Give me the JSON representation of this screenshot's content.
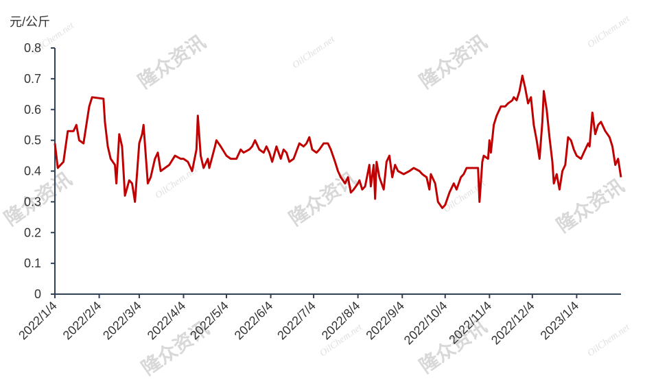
{
  "chart_data": {
    "type": "line",
    "y_label": "元/公斤",
    "watermarks": [
      "隆众资讯",
      "OilChem.net"
    ],
    "x": [
      "2022/1/4",
      "2022/1/6",
      "2022/1/10",
      "2022/1/13",
      "2022/1/17",
      "2022/1/19",
      "2022/1/21",
      "2022/1/24",
      "2022/1/28",
      "2022/1/30",
      "2022/2/7",
      "2022/2/8",
      "2022/2/10",
      "2022/2/12",
      "2022/2/15",
      "2022/2/16",
      "2022/2/18",
      "2022/2/20",
      "2022/2/22",
      "2022/2/25",
      "2022/2/27",
      "2022/3/1",
      "2022/3/4",
      "2022/3/6",
      "2022/3/7",
      "2022/3/10",
      "2022/3/12",
      "2022/3/15",
      "2022/3/17",
      "2022/3/19",
      "2022/3/22",
      "2022/3/25",
      "2022/3/29",
      "2022/4/2",
      "2022/4/4",
      "2022/4/7",
      "2022/4/10",
      "2022/4/13",
      "2022/4/14",
      "2022/4/16",
      "2022/4/18",
      "2022/4/21",
      "2022/4/22",
      "2022/4/26",
      "2022/4/27",
      "2022/4/30",
      "2022/5/4",
      "2022/5/7",
      "2022/5/11",
      "2022/5/14",
      "2022/5/16",
      "2022/5/20",
      "2022/5/22",
      "2022/5/24",
      "2022/5/27",
      "2022/5/30",
      "2022/6/1",
      "2022/6/3",
      "2022/6/5",
      "2022/6/8",
      "2022/6/11",
      "2022/6/13",
      "2022/6/15",
      "2022/6/17",
      "2022/6/20",
      "2022/6/24",
      "2022/6/27",
      "2022/6/29",
      "2022/7/1",
      "2022/7/3",
      "2022/7/6",
      "2022/7/8",
      "2022/7/11",
      "2022/7/14",
      "2022/7/16",
      "2022/7/19",
      "2022/7/21",
      "2022/7/23",
      "2022/7/26",
      "2022/7/28",
      "2022/7/30",
      "2022/8/1",
      "2022/8/4",
      "2022/8/5",
      "2022/8/7",
      "2022/8/9",
      "2022/8/12",
      "2022/8/13",
      "2022/8/15",
      "2022/8/16",
      "2022/8/17",
      "2022/8/19",
      "2022/8/22",
      "2022/8/24",
      "2022/8/26",
      "2022/8/28",
      "2022/8/30",
      "2022/9/1",
      "2022/9/5",
      "2022/9/9",
      "2022/9/12",
      "2022/9/16",
      "2022/9/18",
      "2022/9/21",
      "2022/9/23",
      "2022/9/24",
      "2022/9/27",
      "2022/9/29",
      "2022/10/2",
      "2022/10/4",
      "2022/10/7",
      "2022/10/10",
      "2022/10/12",
      "2022/10/15",
      "2022/10/17",
      "2022/10/19",
      "2022/10/23",
      "2022/10/27",
      "2022/10/28",
      "2022/10/30",
      "2022/10/31",
      "2022/11/3",
      "2022/11/4",
      "2022/11/5",
      "2022/11/7",
      "2022/11/9",
      "2022/11/12",
      "2022/11/15",
      "2022/11/17",
      "2022/11/20",
      "2022/11/21",
      "2022/11/23",
      "2022/11/25",
      "2022/11/27",
      "2022/11/29",
      "2022/12/1",
      "2022/12/3",
      "2022/12/5",
      "2022/12/7",
      "2022/12/8",
      "2022/12/9",
      "2022/12/11",
      "2022/12/12",
      "2022/12/14",
      "2022/12/16",
      "2022/12/18",
      "2022/12/19",
      "2022/12/21",
      "2022/12/23",
      "2022/12/25",
      "2022/12/27",
      "2022/12/29",
      "2022/12/31",
      "2023/1/2",
      "2023/1/4",
      "2023/1/7",
      "2023/1/9",
      "2023/1/12",
      "2023/1/13",
      "2023/1/15",
      "2023/1/17",
      "2023/1/19",
      "2023/1/21",
      "2023/1/24",
      "2023/1/27",
      "2023/1/29",
      "2023/1/31",
      "2023/2/2",
      "2023/2/4"
    ],
    "series": [
      {
        "color": "#c00000",
        "values": [
          0.49,
          0.41,
          0.43,
          0.53,
          0.53,
          0.55,
          0.5,
          0.49,
          0.61,
          0.64,
          0.635,
          0.56,
          0.48,
          0.44,
          0.42,
          0.36,
          0.52,
          0.48,
          0.32,
          0.37,
          0.36,
          0.3,
          0.49,
          0.52,
          0.55,
          0.36,
          0.38,
          0.44,
          0.46,
          0.4,
          0.41,
          0.42,
          0.45,
          0.44,
          0.44,
          0.43,
          0.4,
          0.47,
          0.58,
          0.45,
          0.41,
          0.44,
          0.41,
          0.48,
          0.5,
          0.48,
          0.45,
          0.44,
          0.44,
          0.47,
          0.46,
          0.47,
          0.48,
          0.5,
          0.47,
          0.46,
          0.48,
          0.46,
          0.43,
          0.48,
          0.44,
          0.47,
          0.46,
          0.43,
          0.44,
          0.49,
          0.48,
          0.49,
          0.51,
          0.47,
          0.46,
          0.47,
          0.49,
          0.49,
          0.47,
          0.43,
          0.4,
          0.38,
          0.36,
          0.38,
          0.33,
          0.34,
          0.36,
          0.37,
          0.34,
          0.35,
          0.42,
          0.35,
          0.42,
          0.31,
          0.43,
          0.38,
          0.34,
          0.43,
          0.45,
          0.38,
          0.42,
          0.4,
          0.39,
          0.4,
          0.41,
          0.4,
          0.39,
          0.38,
          0.34,
          0.39,
          0.36,
          0.3,
          0.28,
          0.29,
          0.33,
          0.36,
          0.34,
          0.38,
          0.39,
          0.41,
          0.41,
          0.41,
          0.3,
          0.43,
          0.45,
          0.44,
          0.5,
          0.46,
          0.55,
          0.58,
          0.61,
          0.61,
          0.62,
          0.63,
          0.64,
          0.63,
          0.66,
          0.71,
          0.67,
          0.62,
          0.64,
          0.55,
          0.5,
          0.47,
          0.44,
          0.56,
          0.66,
          0.6,
          0.51,
          0.43,
          0.36,
          0.39,
          0.34,
          0.4,
          0.42,
          0.51,
          0.5,
          0.47,
          0.45,
          0.44,
          0.46,
          0.49,
          0.48,
          0.59,
          0.52,
          0.55,
          0.56,
          0.53,
          0.51,
          0.48,
          0.42,
          0.44,
          0.38
        ]
      }
    ],
    "xlim": [
      "2022/1/4",
      "2023/2/4"
    ],
    "xticks": [
      "2022/1/4",
      "2022/2/4",
      "2022/3/4",
      "2022/4/4",
      "2022/5/4",
      "2022/6/4",
      "2022/7/4",
      "2022/8/4",
      "2022/9/4",
      "2022/10/4",
      "2022/11/4",
      "2022/12/4",
      "2023/1/4"
    ],
    "ylim": [
      0,
      0.8
    ],
    "yticks": [
      0,
      0.1,
      0.2,
      0.3,
      0.4,
      0.5,
      0.6,
      0.7,
      0.8
    ],
    "grid": false
  }
}
